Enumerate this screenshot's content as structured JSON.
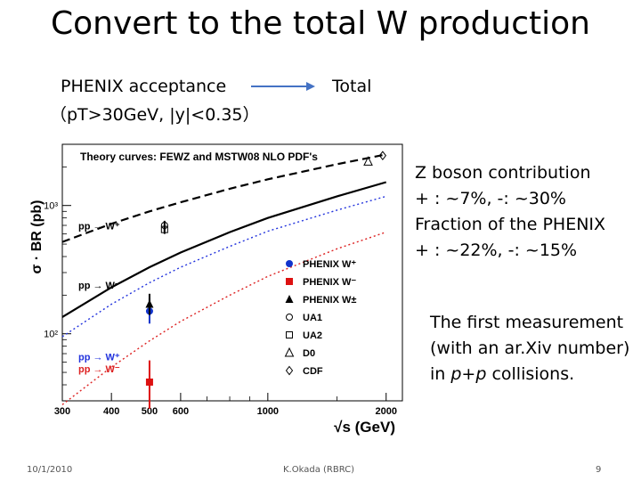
{
  "slide": {
    "title": "Convert to the total W production",
    "acceptance_line1": "PHENIX acceptance",
    "acceptance_line2": "（pТ>30GeV, |y|<0.35）",
    "total_label": "Total",
    "notes": [
      "Z boson contribution",
      "+ : ~7%, -: ~30%",
      "Fraction of the PHENIX",
      "+ : ~22%, -: ~15%"
    ],
    "first_measurement": {
      "line1": "The first measurement",
      "line2": "(with an ar.Xiv number)",
      "line3_pre": "in ",
      "line3_em": "p+p",
      "line3_post": " collisions."
    },
    "footer": {
      "date": "10/1/2010",
      "author": "K.Okada (RBRC)",
      "page": "9"
    }
  },
  "chart_data": {
    "type": "line",
    "title": "Theory curves: FEWZ and MSTW08 NLO PDF's",
    "xlabel": "√s (GeV)",
    "ylabel": "σ · BR (pb)",
    "xscale": "log",
    "yscale": "log",
    "xlim": [
      300,
      2200
    ],
    "ylim": [
      30,
      3000
    ],
    "xticks": [
      300,
      400,
      500,
      600,
      1000,
      2000
    ],
    "yticks": [
      100,
      1000
    ],
    "ytick_labels": [
      "10²",
      "10³"
    ],
    "x": [
      300,
      400,
      500,
      600,
      800,
      1000,
      1500,
      2000
    ],
    "series": [
      {
        "name": "pp → W⁺",
        "style": "dashed",
        "color": "#000000",
        "label_at": "left",
        "label_y": 650,
        "values": [
          520,
          720,
          900,
          1060,
          1350,
          1600,
          2100,
          2500
        ]
      },
      {
        "name": "pp → W⁻",
        "style": "solid",
        "color": "#000000",
        "label_at": "left",
        "label_y": 225,
        "values": [
          135,
          230,
          330,
          430,
          620,
          800,
          1180,
          1520
        ]
      },
      {
        "name": "pp → W⁺",
        "style": "dotted",
        "color": "#2233dd",
        "label_at": "left",
        "label_y": 62,
        "values": [
          95,
          170,
          250,
          330,
          480,
          630,
          920,
          1180
        ]
      },
      {
        "name": "pp → W⁻",
        "style": "dotted",
        "color": "#dd2222",
        "label_at": "left",
        "label_y": 50,
        "values": [
          28,
          55,
          88,
          125,
          200,
          280,
          460,
          620
        ]
      }
    ],
    "measurements": [
      {
        "name": "PHENIX W⁺",
        "marker": "circle-filled",
        "color": "#1133cc",
        "x": 500,
        "y": 150,
        "err_low": 120,
        "err_high": 190
      },
      {
        "name": "PHENIX W⁻",
        "marker": "square-filled",
        "color": "#dd1111",
        "x": 500,
        "y": 42,
        "err_low": 26,
        "err_high": 62
      },
      {
        "name": "PHENIX W±",
        "marker": "triangle-filled",
        "color": "#000000",
        "x": 500,
        "y": 170,
        "err_low": 140,
        "err_high": 205
      },
      {
        "name": "UA1",
        "marker": "circle-open",
        "color": "#000000",
        "x": 546,
        "y": 700,
        "err_low": 640,
        "err_high": 760
      },
      {
        "name": "UA2",
        "marker": "square-open",
        "color": "#000000",
        "x": 546,
        "y": 650,
        "err_low": 600,
        "err_high": 700
      },
      {
        "name": "D0",
        "marker": "triangle-open",
        "color": "#000000",
        "x": 1800,
        "y": 2200
      },
      {
        "name": "CDF",
        "marker": "diamond-open",
        "color": "#000000",
        "x": 1960,
        "y": 2450
      }
    ],
    "legend_position": "lower-right"
  }
}
